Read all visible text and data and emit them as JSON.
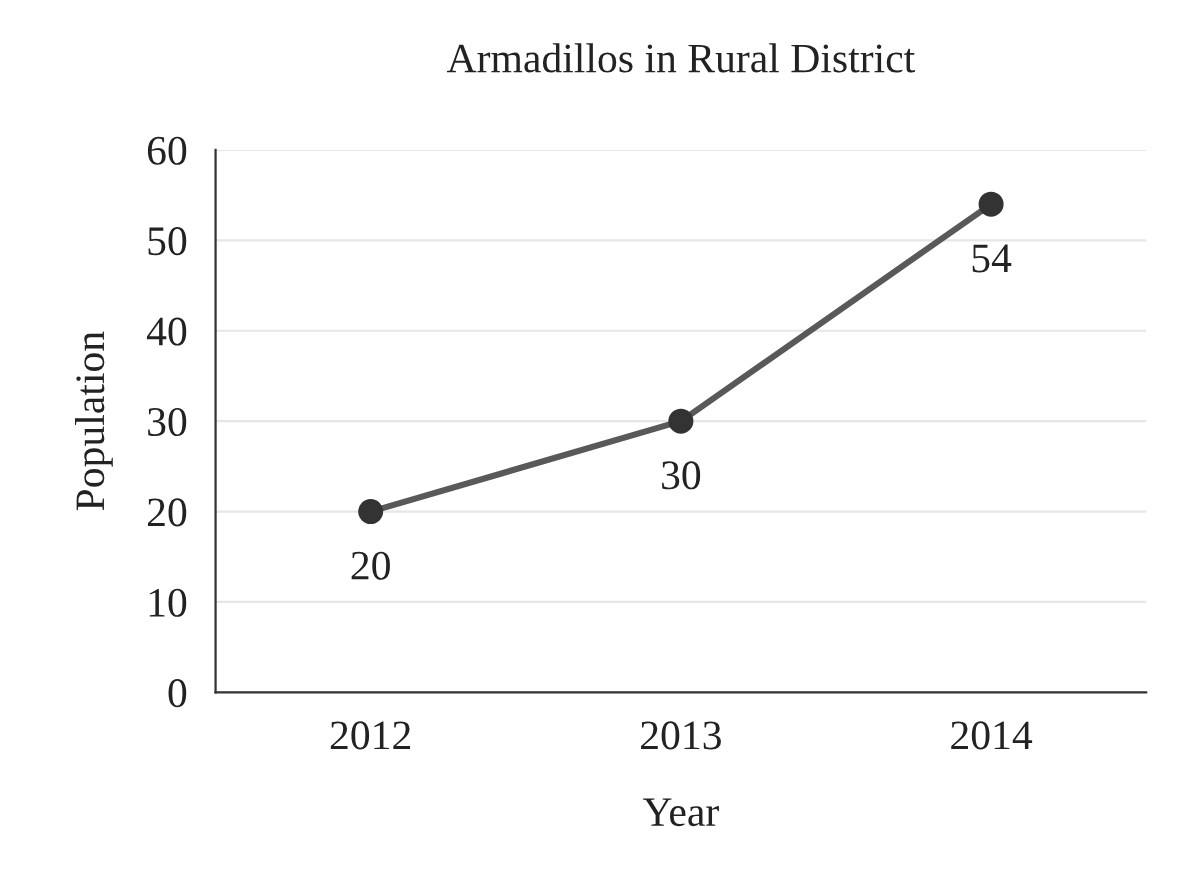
{
  "chart_data": {
    "type": "line",
    "title": "Armadillos in Rural District",
    "xlabel": "Year",
    "ylabel": "Population",
    "categories": [
      "2012",
      "2013",
      "2014"
    ],
    "series": [
      {
        "color": "#595959",
        "values": [
          20,
          30,
          54
        ]
      }
    ],
    "ylim": [
      0,
      60
    ],
    "yticks": [
      0,
      10,
      20,
      30,
      40,
      50,
      60
    ],
    "grid": "y",
    "marker": "circle",
    "line_style": "solid",
    "data_labels": true
  }
}
